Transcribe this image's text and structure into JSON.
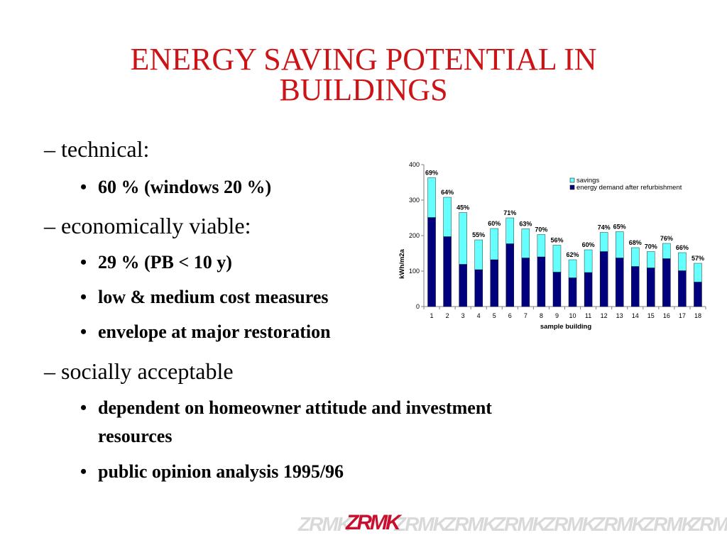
{
  "slide": {
    "title_line1": "ENERGY SAVING POTENTIAL IN",
    "title_line2": "BUILDINGS",
    "items": [
      {
        "kind": "dash",
        "text": "– technical:"
      },
      {
        "kind": "bullet",
        "text": "60 % (windows 20 %)"
      },
      {
        "kind": "dash",
        "text": "– economically viable:"
      },
      {
        "kind": "bullet",
        "text": "29 % (PB < 10 y)"
      },
      {
        "kind": "bullet",
        "text": "low & medium cost measures"
      },
      {
        "kind": "bullet",
        "text": "envelope at major restoration"
      },
      {
        "kind": "dash",
        "text": "– socially acceptable"
      },
      {
        "kind": "bullet",
        "text": "dependent on homeowner attitude and investment"
      },
      {
        "kind": "bullet_cont",
        "text": "resources"
      },
      {
        "kind": "bullet",
        "text": "public opinion analysis 1995/96"
      }
    ],
    "bullet_glyph": "•",
    "logo_text": "ZRMK",
    "colors": {
      "title": "#cc1417",
      "logo_red": "#c8102e",
      "logo_gray": "#d9d9d9"
    }
  },
  "chart_data": {
    "type": "bar",
    "stacked": true,
    "categories": [
      "1",
      "2",
      "3",
      "4",
      "5",
      "6",
      "7",
      "8",
      "9",
      "10",
      "11",
      "12",
      "13",
      "14",
      "15",
      "16",
      "17",
      "18"
    ],
    "series": [
      {
        "name": "energy demand after refurbishment",
        "color": "#00007f",
        "values": [
          251,
          197,
          119,
          104,
          132,
          177,
          137,
          140,
          97,
          81,
          96,
          155,
          137,
          113,
          109,
          135,
          101,
          69
        ]
      },
      {
        "name": "savings",
        "color": "#66ffff",
        "values": [
          112,
          111,
          146,
          84,
          88,
          73,
          82,
          63,
          76,
          51,
          64,
          54,
          74,
          53,
          46,
          43,
          51,
          53
        ]
      }
    ],
    "data_labels": [
      "69%",
      "64%",
      "45%",
      "55%",
      "60%",
      "71%",
      "63%",
      "70%",
      "56%",
      "62%",
      "60%",
      "74%",
      "65%",
      "68%",
      "70%",
      "76%",
      "66%",
      "57%"
    ],
    "xlabel": "sample building",
    "ylabel": "kWh/m2a",
    "ylim": [
      0,
      400
    ],
    "yticks": [
      "0",
      "100",
      "200",
      "300",
      "400"
    ],
    "legend": "top-right",
    "grid": false
  }
}
